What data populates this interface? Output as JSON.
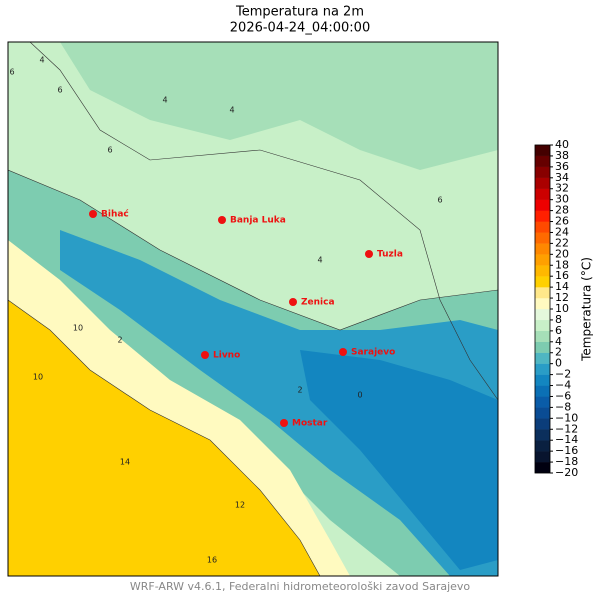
{
  "title": "Temperatura na 2m",
  "subtitle": "2026-04-24_04:00:00",
  "footer": "WRF-ARW v4.6.1, Federalni hidrometeorološki zavod Sarajevo",
  "colorbar": {
    "label": "Temperatura (°C)",
    "lim": [
      -20,
      40
    ],
    "ticks": [
      {
        "value": -20,
        "label": "−20"
      },
      {
        "value": -18,
        "label": "−18"
      },
      {
        "value": -16,
        "label": "−16"
      },
      {
        "value": -14,
        "label": "−14"
      },
      {
        "value": -12,
        "label": "−12"
      },
      {
        "value": -10,
        "label": "−10"
      },
      {
        "value": -8,
        "label": "−8"
      },
      {
        "value": -6,
        "label": "−6"
      },
      {
        "value": -4,
        "label": "−4"
      },
      {
        "value": -2,
        "label": "−2"
      },
      0,
      2,
      4,
      6,
      8,
      10,
      12,
      14,
      16,
      18,
      20,
      22,
      24,
      26,
      28,
      30,
      32,
      34,
      36,
      38,
      40
    ],
    "colors": [
      "#000010",
      "#08142e",
      "#0a2040",
      "#0b2f5c",
      "#0b3d7a",
      "#0a4c94",
      "#0a5ca8",
      "#0b70b5",
      "#1386c0",
      "#2a9dc6",
      "#4fb6c2",
      "#7dccb0",
      "#a6dfb8",
      "#c8f0c8",
      "#e4f8dc",
      "#fffac0",
      "#ffe88a",
      "#ffd000",
      "#ffb800",
      "#ffa000",
      "#ff8800",
      "#ff6a00",
      "#ff4a00",
      "#ff2000",
      "#ee0000",
      "#cc0000",
      "#aa0000",
      "#880000",
      "#660000",
      "#440000"
    ]
  },
  "cities": [
    "Bihać",
    "Banja Luka",
    "Tuzla",
    "Zenica",
    "Sarajevo",
    "Livno",
    "Mostar"
  ],
  "contour_labels": [
    6,
    4,
    6,
    4,
    4,
    6,
    10,
    14,
    16,
    12,
    2,
    0,
    2,
    4,
    6,
    10
  ]
}
